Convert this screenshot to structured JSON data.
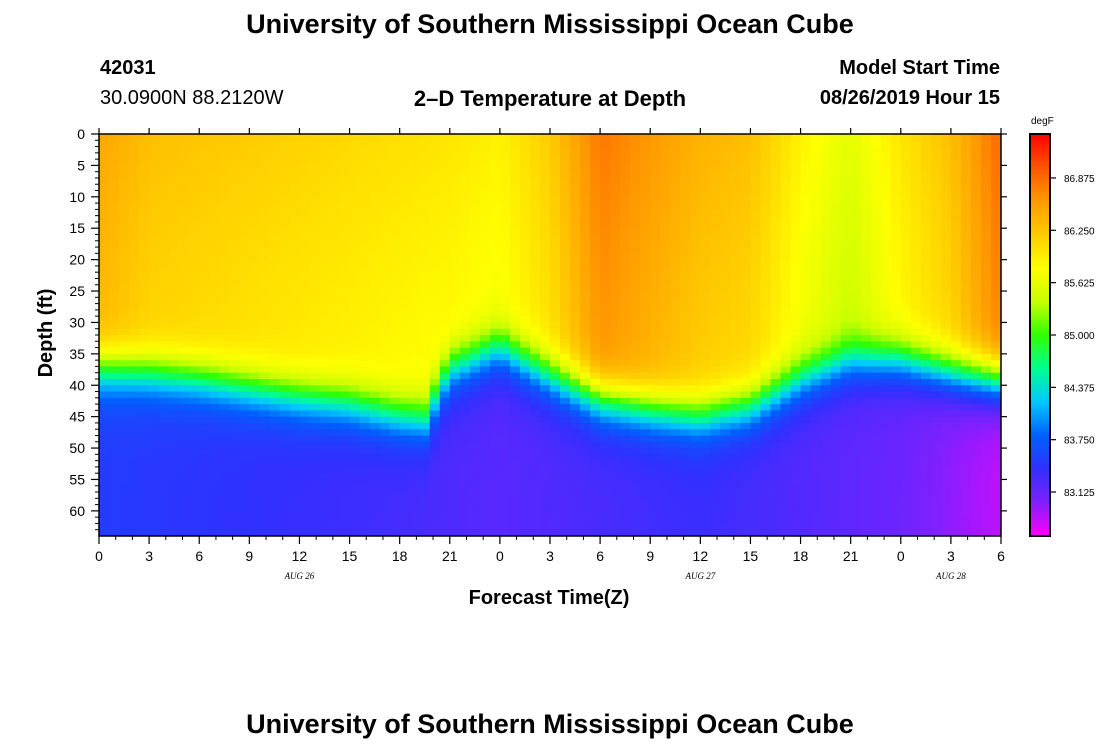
{
  "header": {
    "title": "University of Southern Mississippi Ocean Cube",
    "station_id": "42031",
    "coords": "30.0900N 88.2120W",
    "plot_title": "2–D Temperature at Depth",
    "model_label": "Model Start Time",
    "model_time": "08/26/2019 Hour 15"
  },
  "footer": {
    "title": "University of Southern Mississippi Ocean Cube"
  },
  "chart_data": {
    "type": "heatmap",
    "title": "2–D Temperature at Depth",
    "xlabel": "Forecast Time(Z)",
    "ylabel": "Depth (ft)",
    "x_ticks": [
      "0",
      "3",
      "6",
      "9",
      "12",
      "15",
      "18",
      "21",
      "0",
      "3",
      "6",
      "9",
      "12",
      "15",
      "18",
      "21",
      "0",
      "3",
      "6"
    ],
    "x_range_hours": [
      0,
      54
    ],
    "date_labels": [
      {
        "text": "AUG 26",
        "hour": 12
      },
      {
        "text": "AUG 27",
        "hour": 36
      },
      {
        "text": "AUG 28",
        "hour": 51
      }
    ],
    "y_ticks": [
      "0",
      "5",
      "10",
      "15",
      "20",
      "25",
      "30",
      "35",
      "40",
      "45",
      "50",
      "55",
      "60"
    ],
    "y_range_ft": [
      0,
      64
    ],
    "colorbar": {
      "unit": "degF",
      "labels": [
        "86.875",
        "86.250",
        "85.625",
        "85.000",
        "84.375",
        "83.750",
        "83.125"
      ],
      "label_values": [
        86.875,
        86.25,
        85.625,
        85.0,
        84.375,
        83.75,
        83.125
      ],
      "range": [
        82.6,
        87.4
      ],
      "colors": [
        "#ff00ff",
        "#8020ff",
        "#3030ff",
        "#0060ff",
        "#00c8ff",
        "#00ff90",
        "#30ff00",
        "#c8ff00",
        "#ffff00",
        "#ffcc00",
        "#ff9900",
        "#ff5500",
        "#ff0000"
      ]
    },
    "mixed_layer": {
      "hours": [
        0,
        3,
        6,
        9,
        12,
        15,
        18,
        19.5,
        21,
        24,
        27,
        30,
        33,
        36,
        39,
        42,
        45,
        48,
        51,
        54
      ],
      "depth_ft": [
        37,
        37.5,
        38.5,
        40,
        41.5,
        42.5,
        44.5,
        45,
        37,
        33.5,
        38,
        42,
        43.5,
        44.5,
        43,
        38.5,
        35.5,
        35.5,
        37.5,
        39
      ]
    },
    "surface_temp": {
      "hours": [
        0,
        3,
        6,
        9,
        12,
        15,
        18,
        21,
        24,
        27,
        30,
        33,
        36,
        39,
        42,
        45,
        48,
        51,
        54
      ],
      "degF": [
        86.5,
        86.3,
        86.25,
        86.2,
        86.15,
        86.1,
        86.05,
        86.0,
        85.9,
        86.2,
        86.8,
        86.6,
        86.4,
        86.3,
        85.9,
        85.6,
        86.0,
        86.3,
        86.9
      ]
    },
    "deep_temp": {
      "hours": [
        0,
        18,
        24,
        36,
        48,
        54
      ],
      "degF": [
        83.5,
        83.3,
        83.2,
        83.35,
        83.1,
        82.8
      ]
    }
  }
}
